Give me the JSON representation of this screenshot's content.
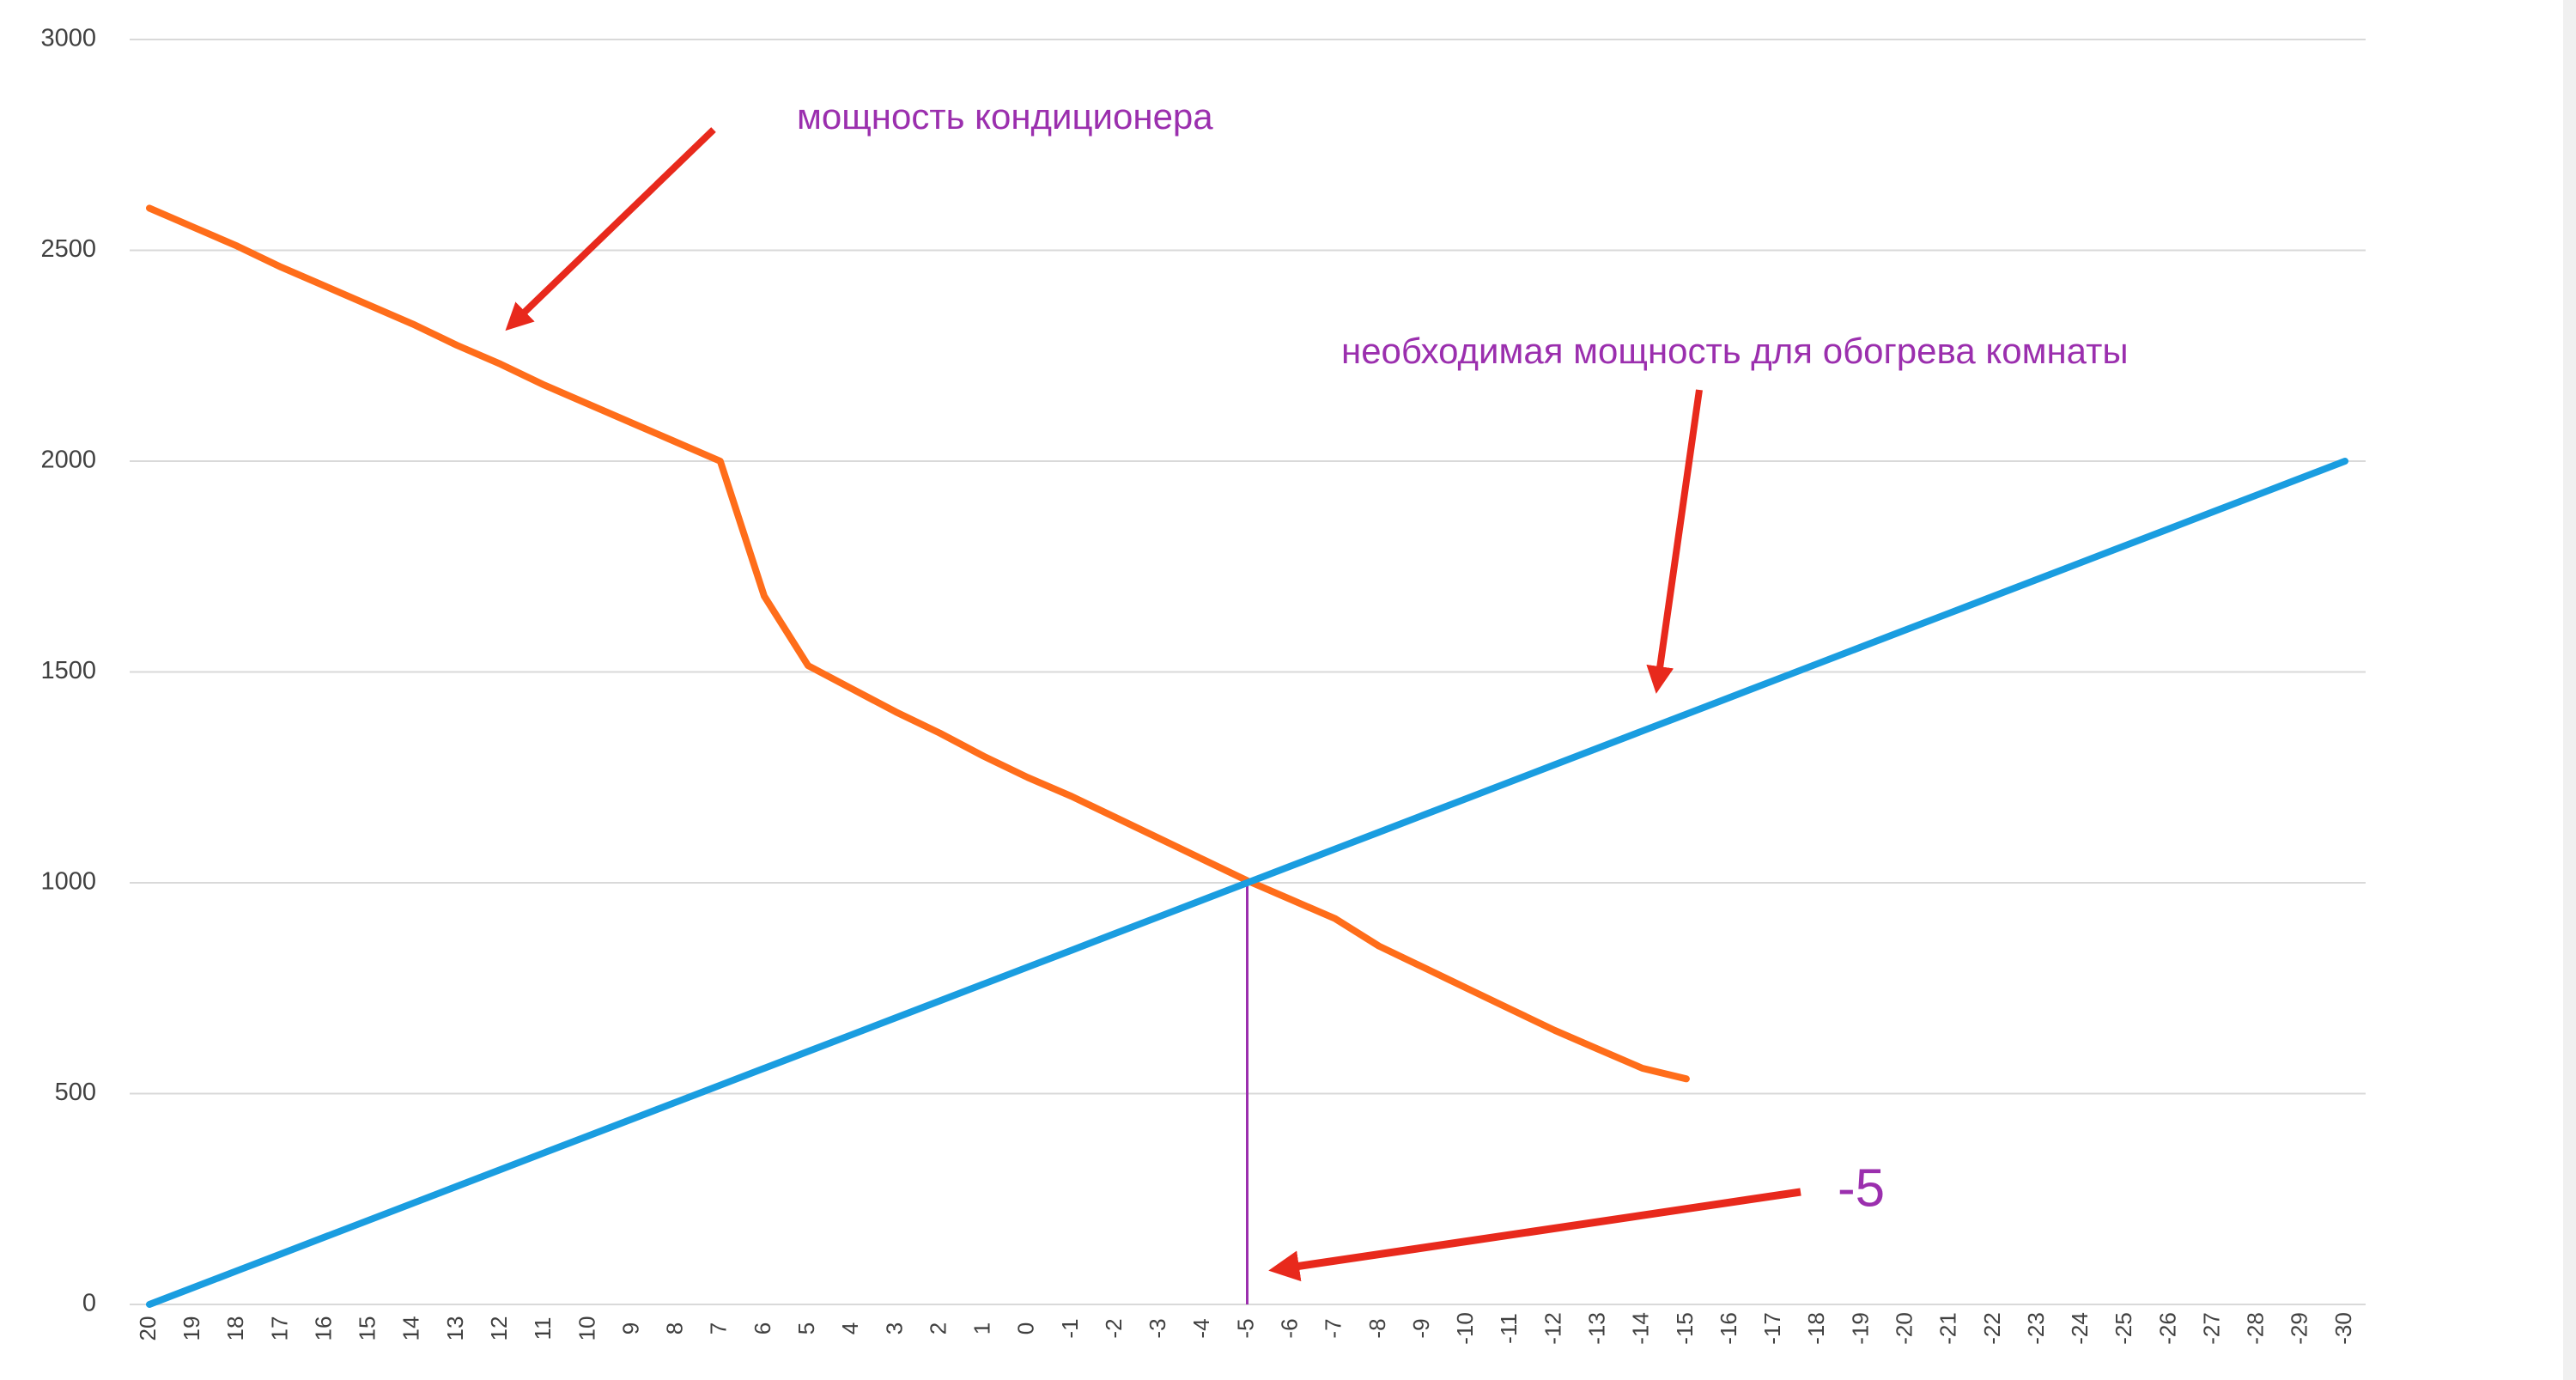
{
  "chart_data": {
    "type": "line",
    "categories": [
      "20",
      "19",
      "18",
      "17",
      "16",
      "15",
      "14",
      "13",
      "12",
      "11",
      "10",
      "9",
      "8",
      "7",
      "6",
      "5",
      "4",
      "3",
      "2",
      "1",
      "0",
      "-1",
      "-2",
      "-3",
      "-4",
      "-5",
      "-6",
      "-7",
      "-8",
      "-9",
      "-10",
      "-11",
      "-12",
      "-13",
      "-14",
      "-15",
      "-16",
      "-17",
      "-18",
      "-19",
      "-20",
      "-21",
      "-22",
      "-23",
      "-24",
      "-25",
      "-26",
      "-27",
      "-28",
      "-29",
      "-30"
    ],
    "series": [
      {
        "color": "#ff6d1a",
        "values": [
          2600,
          2555,
          2510,
          2460,
          2415,
          2370,
          2325,
          2275,
          2230,
          2180,
          2135,
          2090,
          2045,
          2000,
          1680,
          1515,
          1460,
          1405,
          1355,
          1300,
          1250,
          1205,
          1155,
          1105,
          1055,
          1005,
          960,
          915,
          850,
          800,
          750,
          700,
          650,
          605,
          560,
          535,
          null,
          null,
          null,
          null,
          null,
          null,
          null,
          null,
          null,
          null,
          null,
          null,
          null,
          null,
          null
        ]
      },
      {
        "color": "#1a9de0",
        "values": [
          0,
          40,
          80,
          120,
          160,
          200,
          240,
          280,
          320,
          360,
          400,
          440,
          480,
          520,
          560,
          600,
          640,
          680,
          720,
          760,
          800,
          840,
          880,
          920,
          960,
          1000,
          1040,
          1080,
          1120,
          1160,
          1200,
          1240,
          1280,
          1320,
          1360,
          1400,
          1440,
          1480,
          1520,
          1560,
          1600,
          1640,
          1680,
          1720,
          1760,
          1800,
          1840,
          1880,
          1920,
          1960,
          2000
        ]
      }
    ],
    "ylim": [
      0,
      3000
    ],
    "yticks": [
      0,
      500,
      1000,
      1500,
      2000,
      2500,
      3000
    ],
    "grid": true,
    "annotations": [
      "мощность кондиционера",
      "необходимая мощность для обогрева комнаты",
      "-5"
    ]
  }
}
